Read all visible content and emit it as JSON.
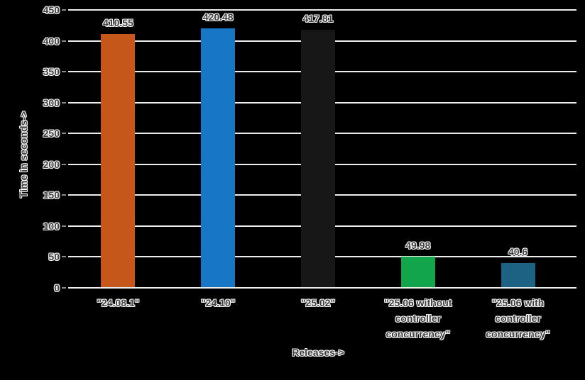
{
  "colors": {
    "background": "#000000",
    "gridline": "#ededed",
    "tick_mark": "#8a8a8a",
    "text": "#3e3e3e",
    "text_halo": "#ffffff"
  },
  "chart_data": {
    "type": "bar",
    "title": "",
    "xlabel": "Releases->",
    "ylabel": "Time in seconds->",
    "categories": [
      "\"24.08.1\"",
      "\"24.10\"",
      "\"25.02\"",
      "\"25.06 without controller concurrency\"",
      "\"25.06 with controller concurrency\""
    ],
    "values": [
      410.55,
      420.48,
      417.81,
      49.98,
      40.6
    ],
    "value_labels": [
      "410.55",
      "420.48",
      "417.81",
      "49.98",
      "40.6"
    ],
    "bar_colors": [
      "#c5571a",
      "#1776c6",
      "#171717",
      "#12a54c",
      "#1d6183"
    ],
    "ylim": [
      0,
      450
    ],
    "yticks": [
      0,
      50,
      100,
      150,
      200,
      250,
      300,
      350,
      400,
      450
    ],
    "grid": true,
    "legend": "none"
  }
}
